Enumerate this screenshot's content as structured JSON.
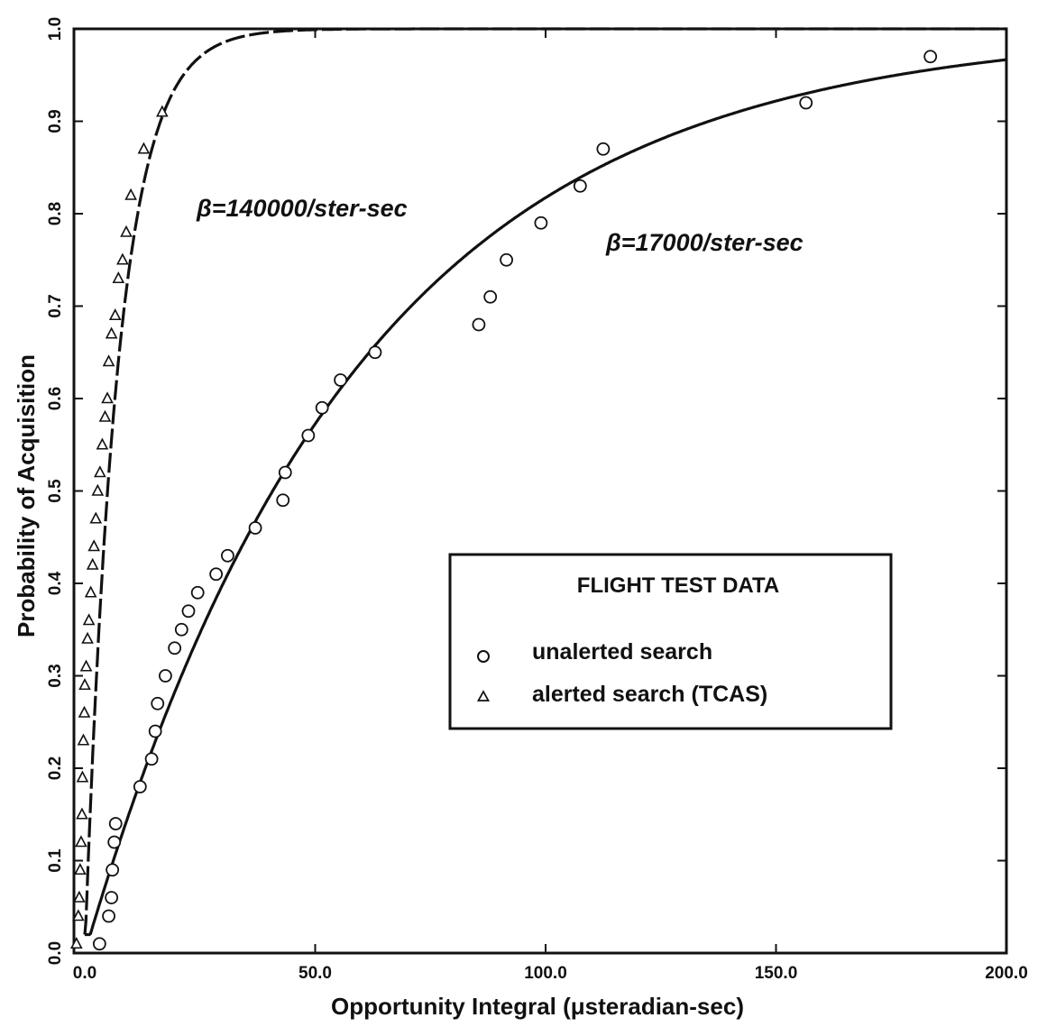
{
  "chart_data": {
    "type": "scatter",
    "title": "",
    "xlabel": "Opportunity Integral (μsteradian-sec)",
    "ylabel": "Probability of Acquisition",
    "xlim": [
      -2,
      200
    ],
    "ylim": [
      0,
      1.0
    ],
    "x_ticks": [
      "0.0",
      "50.0",
      "100.0",
      "150.0",
      "200.0"
    ],
    "y_ticks": [
      "0.0",
      "0.1",
      "0.2",
      "0.3",
      "0.4",
      "0.5",
      "0.6",
      "0.7",
      "0.8",
      "0.9",
      "1.0"
    ],
    "grid": false,
    "legend": {
      "placement": "center-right",
      "title": "FLIGHT TEST DATA",
      "entries": [
        {
          "label": "unalerted search",
          "marker": "circle"
        },
        {
          "label": "alerted search (TCAS)",
          "marker": "triangle"
        }
      ]
    },
    "annotations": [
      {
        "text": "β=140000/ster-sec",
        "x": 25,
        "y": 0.8
      },
      {
        "text": "β=17000/ster-sec",
        "x": 114,
        "y": 0.77
      }
    ],
    "series": [
      {
        "name": "unalerted search",
        "marker": "circle",
        "points": [
          [
            3.2,
            0.01
          ],
          [
            5.2,
            0.04
          ],
          [
            5.8,
            0.06
          ],
          [
            6.0,
            0.09
          ],
          [
            6.4,
            0.12
          ],
          [
            6.7,
            0.14
          ],
          [
            12.0,
            0.18
          ],
          [
            14.5,
            0.21
          ],
          [
            15.3,
            0.24
          ],
          [
            15.8,
            0.27
          ],
          [
            17.5,
            0.3
          ],
          [
            19.5,
            0.33
          ],
          [
            21.0,
            0.35
          ],
          [
            22.5,
            0.37
          ],
          [
            24.5,
            0.39
          ],
          [
            28.5,
            0.41
          ],
          [
            31.0,
            0.43
          ],
          [
            37.0,
            0.46
          ],
          [
            43.0,
            0.49
          ],
          [
            43.5,
            0.52
          ],
          [
            48.5,
            0.56
          ],
          [
            51.5,
            0.59
          ],
          [
            55.5,
            0.62
          ],
          [
            63.0,
            0.65
          ],
          [
            85.5,
            0.68
          ],
          [
            88.0,
            0.71
          ],
          [
            91.5,
            0.75
          ],
          [
            99.0,
            0.79
          ],
          [
            107.5,
            0.83
          ],
          [
            112.5,
            0.87
          ],
          [
            156.5,
            0.92
          ],
          [
            183.5,
            0.97
          ]
        ]
      },
      {
        "name": "alerted search (TCAS)",
        "marker": "triangle",
        "points": [
          [
            -1.8,
            0.01
          ],
          [
            -1.4,
            0.04
          ],
          [
            -1.2,
            0.06
          ],
          [
            -1.0,
            0.09
          ],
          [
            -0.8,
            0.12
          ],
          [
            -0.6,
            0.15
          ],
          [
            -0.5,
            0.19
          ],
          [
            -0.3,
            0.23
          ],
          [
            -0.1,
            0.26
          ],
          [
            0.0,
            0.29
          ],
          [
            0.3,
            0.31
          ],
          [
            0.6,
            0.34
          ],
          [
            0.9,
            0.36
          ],
          [
            1.3,
            0.39
          ],
          [
            1.7,
            0.42
          ],
          [
            2.0,
            0.44
          ],
          [
            2.4,
            0.47
          ],
          [
            2.8,
            0.5
          ],
          [
            3.3,
            0.52
          ],
          [
            3.8,
            0.55
          ],
          [
            4.4,
            0.58
          ],
          [
            4.9,
            0.6
          ],
          [
            5.2,
            0.64
          ],
          [
            5.8,
            0.67
          ],
          [
            6.6,
            0.69
          ],
          [
            7.3,
            0.73
          ],
          [
            8.2,
            0.75
          ],
          [
            9.0,
            0.78
          ],
          [
            10.0,
            0.82
          ],
          [
            12.8,
            0.87
          ],
          [
            16.8,
            0.91
          ]
        ]
      }
    ],
    "curves": [
      {
        "label": "β=140000/ster-sec",
        "beta": 140000,
        "style": "dashed"
      },
      {
        "label": "β=17000/ster-sec",
        "beta": 17000,
        "style": "solid"
      }
    ]
  },
  "legend_box": {
    "title": "FLIGHT TEST DATA",
    "item_1": "unalerted search",
    "item_2": "alerted search (TCAS)"
  },
  "annotations": {
    "beta_high": "β=140000/ster-sec",
    "beta_low": "β=17000/ster-sec"
  }
}
